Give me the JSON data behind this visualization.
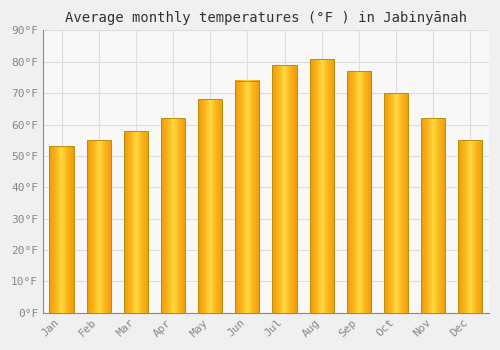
{
  "title": "Average monthly temperatures (°F ) in Jabinyānah",
  "months": [
    "Jan",
    "Feb",
    "Mar",
    "Apr",
    "May",
    "Jun",
    "Jul",
    "Aug",
    "Sep",
    "Oct",
    "Nov",
    "Dec"
  ],
  "values": [
    53,
    55,
    58,
    62,
    68,
    74,
    79,
    81,
    77,
    70,
    62,
    55
  ],
  "bar_color_center": "#FFD040",
  "bar_color_edge_side": "#F5A000",
  "bar_outline_color": "#C8A000",
  "background_color": "#F0F0F0",
  "plot_bg_color": "#F8F8F8",
  "grid_color": "#DDDDDD",
  "text_color": "#888888",
  "title_color": "#333333",
  "ylim": [
    0,
    90
  ],
  "yticks": [
    0,
    10,
    20,
    30,
    40,
    50,
    60,
    70,
    80,
    90
  ],
  "title_fontsize": 10,
  "tick_fontsize": 8,
  "figsize": [
    5.0,
    3.5
  ],
  "dpi": 100
}
